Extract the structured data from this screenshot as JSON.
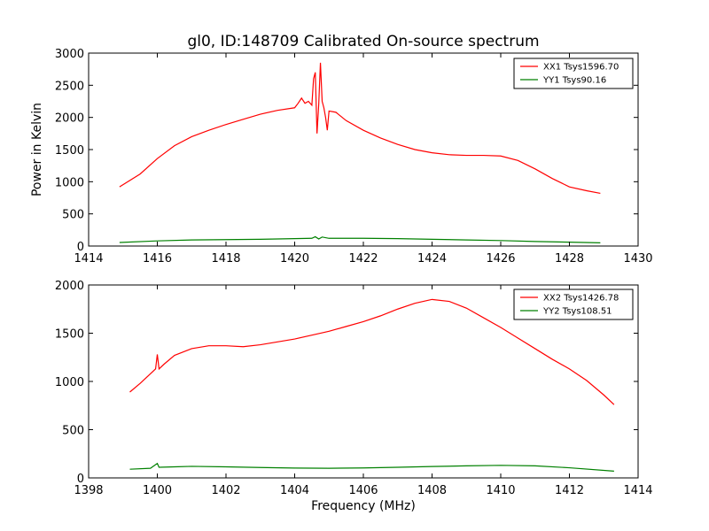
{
  "chart_data": {
    "title": "gl0, ID:148709 Calibrated On-source spectrum",
    "xlabel": "Frequency (MHz)",
    "ylabel": "Power in Kelvin",
    "panels": [
      {
        "type": "line",
        "xlim": [
          1414,
          1430
        ],
        "ylim": [
          0,
          3000
        ],
        "xticks": [
          1414,
          1416,
          1418,
          1420,
          1422,
          1424,
          1426,
          1428,
          1430
        ],
        "yticks": [
          0,
          500,
          1000,
          1500,
          2000,
          2500,
          3000
        ],
        "legend_position": "top-right",
        "series": [
          {
            "name": "XX1 Tsys1596.70",
            "color": "#ff0000",
            "x": [
              1414.9,
              1415.5,
              1416.0,
              1416.5,
              1417.0,
              1417.5,
              1418.0,
              1418.5,
              1419.0,
              1419.5,
              1420.0,
              1420.1,
              1420.2,
              1420.3,
              1420.4,
              1420.5,
              1420.55,
              1420.6,
              1420.65,
              1420.7,
              1420.75,
              1420.8,
              1420.85,
              1420.9,
              1420.95,
              1421.0,
              1421.2,
              1421.5,
              1422.0,
              1422.5,
              1423.0,
              1423.5,
              1424.0,
              1424.5,
              1425.0,
              1425.5,
              1426.0,
              1426.5,
              1427.0,
              1427.5,
              1428.0,
              1428.5,
              1428.9
            ],
            "values": [
              920,
              1120,
              1360,
              1560,
              1700,
              1800,
              1890,
              1970,
              2050,
              2110,
              2150,
              2220,
              2300,
              2220,
              2250,
              2190,
              2600,
              2700,
              1750,
              2200,
              2850,
              2250,
              2150,
              2000,
              1800,
              2100,
              2080,
              1950,
              1800,
              1680,
              1580,
              1500,
              1450,
              1420,
              1410,
              1410,
              1400,
              1330,
              1200,
              1050,
              920,
              860,
              820
            ]
          },
          {
            "name": "YY1 Tsys90.16",
            "color": "#008000",
            "x": [
              1414.9,
              1416.0,
              1417.0,
              1418.0,
              1419.0,
              1420.0,
              1420.5,
              1420.6,
              1420.7,
              1420.8,
              1421.0,
              1422.0,
              1423.0,
              1424.0,
              1425.0,
              1426.0,
              1427.0,
              1428.0,
              1428.9
            ],
            "values": [
              55,
              80,
              95,
              100,
              105,
              115,
              120,
              145,
              110,
              140,
              120,
              120,
              115,
              105,
              95,
              85,
              70,
              60,
              50
            ]
          }
        ]
      },
      {
        "type": "line",
        "xlim": [
          1398,
          1414
        ],
        "ylim": [
          0,
          2000
        ],
        "xticks": [
          1398,
          1400,
          1402,
          1404,
          1406,
          1408,
          1410,
          1412,
          1414
        ],
        "yticks": [
          0,
          500,
          1000,
          1500,
          2000
        ],
        "legend_position": "top-right",
        "series": [
          {
            "name": "XX2 Tsys1426.78",
            "color": "#ff0000",
            "x": [
              1399.2,
              1399.5,
              1399.8,
              1399.95,
              1400.0,
              1400.05,
              1400.2,
              1400.5,
              1401.0,
              1401.5,
              1402.0,
              1402.5,
              1403.0,
              1403.5,
              1404.0,
              1404.5,
              1405.0,
              1405.5,
              1406.0,
              1406.5,
              1407.0,
              1407.5,
              1408.0,
              1408.5,
              1409.0,
              1409.5,
              1410.0,
              1410.5,
              1411.0,
              1411.5,
              1412.0,
              1412.5,
              1413.0,
              1413.3
            ],
            "values": [
              890,
              980,
              1080,
              1130,
              1280,
              1130,
              1180,
              1270,
              1340,
              1370,
              1370,
              1360,
              1380,
              1410,
              1440,
              1480,
              1520,
              1570,
              1620,
              1680,
              1750,
              1810,
              1850,
              1830,
              1760,
              1660,
              1560,
              1450,
              1340,
              1230,
              1130,
              1010,
              860,
              760
            ]
          },
          {
            "name": "YY2 Tsys108.51",
            "color": "#008000",
            "x": [
              1399.2,
              1399.8,
              1400.0,
              1400.05,
              1400.5,
              1401.0,
              1402.0,
              1403.0,
              1404.0,
              1405.0,
              1406.0,
              1407.0,
              1408.0,
              1409.0,
              1410.0,
              1411.0,
              1412.0,
              1413.3
            ],
            "values": [
              90,
              100,
              150,
              110,
              115,
              120,
              115,
              108,
              102,
              100,
              103,
              110,
              118,
              125,
              130,
              125,
              105,
              70
            ]
          }
        ]
      }
    ]
  }
}
